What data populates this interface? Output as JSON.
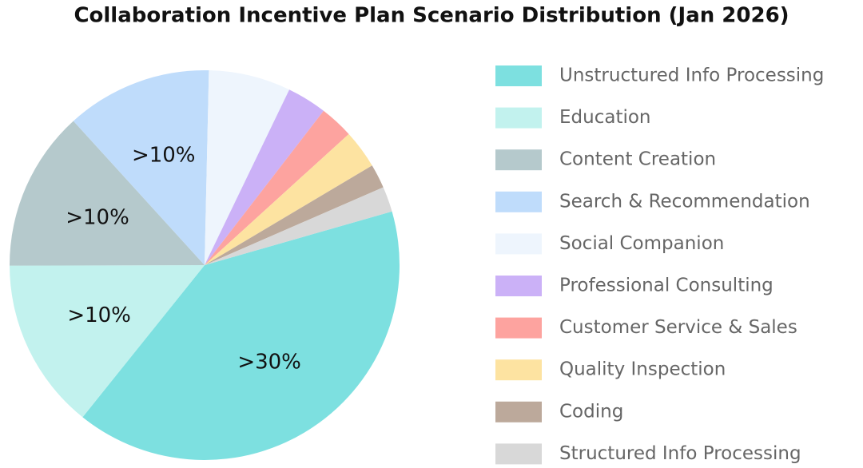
{
  "chart_data": {
    "type": "pie",
    "title": "Collaboration Incentive Plan Scenario Distribution (Jan 2026)",
    "categories": [
      "Unstructured Info Processing",
      "Education",
      "Content Creation",
      "Search & Recommendation",
      "Social Companion",
      "Professional Consulting",
      "Customer Service & Sales",
      "Quality Inspection",
      "Coding",
      "Structured Info Processing"
    ],
    "values": [
      40.2,
      14.2,
      13.3,
      12.1,
      6.8,
      3.3,
      2.8,
      3.2,
      2.0,
      2.1
    ],
    "value_labels": [
      ">30%",
      ">10%",
      ">10%",
      ">10%",
      null,
      null,
      null,
      null,
      null,
      null
    ],
    "colors": [
      "#7de0e0",
      "#c2f2ee",
      "#b5c9cc",
      "#bfdcfb",
      "#eef5fd",
      "#cbb1f7",
      "#fda39f",
      "#fde3a1",
      "#bca99b",
      "#d8d8d8"
    ]
  }
}
